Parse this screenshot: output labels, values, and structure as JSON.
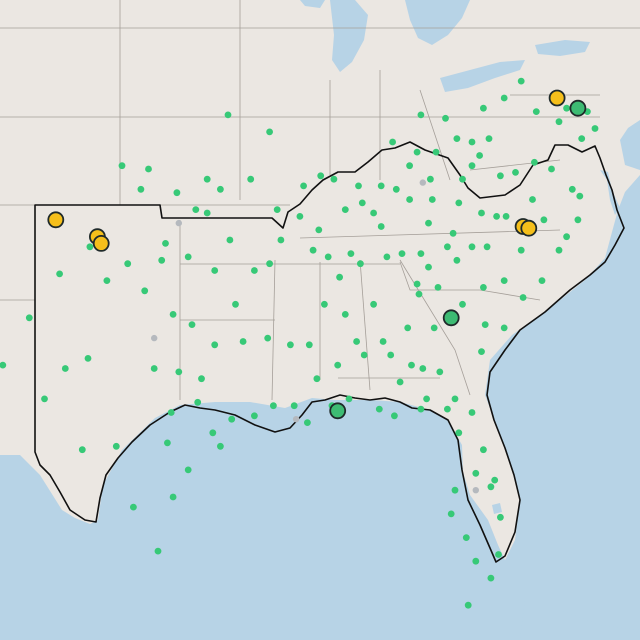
{
  "map": {
    "colors": {
      "land": "#ebe7e2",
      "water": "#b7d3e6",
      "state_border": "#a59f99",
      "region_outline": "#111111",
      "small_marker": "#37c977",
      "large_green": "#3dbb73",
      "large_yellow": "#f5bf1b",
      "marker_stroke": "#1f2a2a",
      "grey_marker": "#b5b9be"
    },
    "icons": {
      "small_marker": "circle-dot",
      "large_marker": "circle-outlined"
    },
    "projection": {
      "lon_min": -106.55,
      "lon_max": -72.72,
      "lat_min": 23.57,
      "lat_max": 42.5
    },
    "small_markers": [
      [
        -98.7,
        37.5
      ],
      [
        -97.2,
        36.8
      ],
      [
        -99.1,
        36.9
      ],
      [
        -100.1,
        37.6
      ],
      [
        -96.2,
        36.3
      ],
      [
        -95.6,
        37.2
      ],
      [
        -94.9,
        36.9
      ],
      [
        -97.8,
        35.3
      ],
      [
        -98.0,
        34.8
      ],
      [
        -96.6,
        34.9
      ],
      [
        -95.2,
        34.5
      ],
      [
        -99.8,
        34.7
      ],
      [
        -101.8,
        35.2
      ],
      [
        -100.9,
        34.2
      ],
      [
        -98.9,
        33.9
      ],
      [
        -97.4,
        33.2
      ],
      [
        -96.4,
        32.9
      ],
      [
        -95.2,
        32.3
      ],
      [
        -94.1,
        33.5
      ],
      [
        -98.4,
        31.6
      ],
      [
        -97.5,
        30.3
      ],
      [
        -96.1,
        30.6
      ],
      [
        -95.3,
        29.7
      ],
      [
        -94.3,
        30.1
      ],
      [
        -97.4,
        27.8
      ],
      [
        -98.2,
        26.2
      ],
      [
        -99.5,
        27.5
      ],
      [
        -100.4,
        29.3
      ],
      [
        -101.9,
        31.9
      ],
      [
        -103.1,
        31.6
      ],
      [
        -102.2,
        29.2
      ],
      [
        -104.2,
        30.7
      ],
      [
        -106.4,
        31.7
      ],
      [
        -105.0,
        33.1
      ],
      [
        -103.4,
        34.4
      ],
      [
        -93.7,
        32.4
      ],
      [
        -92.4,
        32.5
      ],
      [
        -91.2,
        32.3
      ],
      [
        -92.1,
        30.5
      ],
      [
        -93.1,
        30.2
      ],
      [
        -91.0,
        30.5
      ],
      [
        -90.3,
        30.0
      ],
      [
        -89.8,
        31.3
      ],
      [
        -90.2,
        32.3
      ],
      [
        -89.4,
        33.5
      ],
      [
        -88.6,
        34.3
      ],
      [
        -88.7,
        31.7
      ],
      [
        -89.0,
        30.5
      ],
      [
        -88.1,
        30.7
      ],
      [
        -87.7,
        32.4
      ],
      [
        -86.8,
        33.5
      ],
      [
        -86.3,
        32.4
      ],
      [
        -85.4,
        31.2
      ],
      [
        -87.5,
        34.7
      ],
      [
        -86.1,
        34.9
      ],
      [
        -85.0,
        32.8
      ],
      [
        -84.4,
        33.8
      ],
      [
        -83.6,
        32.8
      ],
      [
        -82.1,
        33.5
      ],
      [
        -81.1,
        32.1
      ],
      [
        -83.3,
        31.5
      ],
      [
        -84.3,
        30.4
      ],
      [
        -85.7,
        30.2
      ],
      [
        -86.5,
        30.4
      ],
      [
        -82.5,
        30.7
      ],
      [
        -81.6,
        30.3
      ],
      [
        -81.0,
        29.2
      ],
      [
        -82.3,
        29.7
      ],
      [
        -81.4,
        28.5
      ],
      [
        -82.5,
        28.0
      ],
      [
        -82.7,
        27.3
      ],
      [
        -81.9,
        26.6
      ],
      [
        -80.2,
        26.1
      ],
      [
        -80.1,
        27.2
      ],
      [
        -80.6,
        28.1
      ],
      [
        -81.4,
        25.9
      ],
      [
        -80.6,
        25.4
      ],
      [
        -81.8,
        24.6
      ],
      [
        -79.9,
        32.8
      ],
      [
        -80.9,
        32.9
      ],
      [
        -81.0,
        34.0
      ],
      [
        -82.4,
        34.8
      ],
      [
        -81.6,
        35.2
      ],
      [
        -80.8,
        35.2
      ],
      [
        -79.9,
        34.2
      ],
      [
        -78.9,
        33.7
      ],
      [
        -77.9,
        34.2
      ],
      [
        -77.0,
        35.1
      ],
      [
        -78.6,
        35.8
      ],
      [
        -79.8,
        36.1
      ],
      [
        -80.3,
        36.1
      ],
      [
        -82.6,
        35.6
      ],
      [
        -83.9,
        35.9
      ],
      [
        -84.3,
        35.0
      ],
      [
        -85.3,
        35.0
      ],
      [
        -86.8,
        36.2
      ],
      [
        -87.4,
        36.5
      ],
      [
        -88.3,
        36.3
      ],
      [
        -89.7,
        35.7
      ],
      [
        -90.0,
        35.1
      ],
      [
        -86.4,
        35.8
      ],
      [
        -84.9,
        36.6
      ],
      [
        -83.7,
        36.6
      ],
      [
        -82.3,
        36.5
      ],
      [
        -81.6,
        37.6
      ],
      [
        -80.1,
        37.3
      ],
      [
        -79.3,
        37.4
      ],
      [
        -78.3,
        37.7
      ],
      [
        -77.4,
        37.5
      ],
      [
        -76.3,
        36.9
      ],
      [
        -75.9,
        36.7
      ],
      [
        -77.0,
        38.9
      ],
      [
        -78.2,
        39.2
      ],
      [
        -79.9,
        39.6
      ],
      [
        -80.7,
        38.4
      ],
      [
        -81.6,
        38.3
      ],
      [
        -82.4,
        38.4
      ],
      [
        -83.5,
        38.0
      ],
      [
        -84.5,
        38.0
      ],
      [
        -85.8,
        38.3
      ],
      [
        -87.6,
        37.0
      ],
      [
        -86.4,
        37.0
      ],
      [
        -84.9,
        37.6
      ],
      [
        -83.8,
        37.2
      ],
      [
        -82.1,
        37.2
      ],
      [
        -81.2,
        37.9
      ],
      [
        -84.3,
        39.1
      ],
      [
        -83.0,
        39.0
      ],
      [
        -81.0,
        39.3
      ],
      [
        -79.0,
        40.1
      ],
      [
        -76.6,
        39.3
      ],
      [
        -75.5,
        39.2
      ],
      [
        -75.8,
        38.4
      ],
      [
        -75.1,
        38.7
      ],
      [
        -88.9,
        37.2
      ],
      [
        -89.6,
        37.3
      ],
      [
        -90.7,
        36.1
      ],
      [
        -91.7,
        35.4
      ],
      [
        -92.3,
        34.7
      ],
      [
        -93.1,
        34.5
      ],
      [
        -94.4,
        35.4
      ],
      [
        -90.5,
        37.0
      ],
      [
        -91.9,
        36.3
      ],
      [
        -93.3,
        37.2
      ],
      [
        -92.3,
        38.6
      ],
      [
        -94.5,
        39.1
      ],
      [
        -84.5,
        34.1
      ],
      [
        -83.4,
        34.0
      ],
      [
        -84.8,
        31.7
      ],
      [
        -84.2,
        31.6
      ],
      [
        -82.9,
        30.4
      ],
      [
        -80.4,
        28.3
      ],
      [
        -83.9,
        34.6
      ],
      [
        -82.9,
        35.2
      ],
      [
        -81.1,
        36.2
      ],
      [
        -85.6,
        36.9
      ],
      [
        -88.0,
        35.0
      ],
      [
        -89.2,
        34.9
      ],
      [
        -78.4,
        36.6
      ],
      [
        -77.8,
        36.0
      ],
      [
        -76.6,
        35.5
      ],
      [
        -79.0,
        35.1
      ],
      [
        -76.0,
        36.0
      ],
      [
        -87.3,
        32.0
      ],
      [
        -88.3,
        33.2
      ],
      [
        -85.9,
        32.0
      ],
      [
        -84.0,
        30.7
      ],
      [
        -95.6,
        36.2
      ],
      [
        -97.1,
        31.5
      ],
      [
        -97.7,
        29.4
      ],
      [
        -96.6,
        28.6
      ],
      [
        -95.9,
        31.3
      ],
      [
        -94.9,
        29.3
      ]
    ],
    "grey_markers": [
      [
        -82.9,
        33.0
      ],
      [
        -81.4,
        28.0
      ],
      [
        -98.4,
        32.5
      ],
      [
        -97.1,
        35.9
      ],
      [
        -90.9,
        30.1
      ],
      [
        -84.2,
        37.1
      ]
    ],
    "large_markers": [
      {
        "lon": -103.6,
        "lat": 36.0,
        "color_key": "large_yellow"
      },
      {
        "lon": -101.4,
        "lat": 35.5,
        "color_key": "large_yellow"
      },
      {
        "lon": -101.2,
        "lat": 35.3,
        "color_key": "large_yellow"
      },
      {
        "lon": -77.1,
        "lat": 39.6,
        "color_key": "large_yellow"
      },
      {
        "lon": -78.9,
        "lat": 35.8,
        "color_key": "large_yellow"
      },
      {
        "lon": -78.6,
        "lat": 35.75,
        "color_key": "large_yellow"
      },
      {
        "lon": -76.0,
        "lat": 39.3,
        "color_key": "large_green"
      },
      {
        "lon": -82.7,
        "lat": 33.1,
        "color_key": "large_green"
      },
      {
        "lon": -88.7,
        "lat": 30.35,
        "color_key": "large_green"
      }
    ]
  }
}
